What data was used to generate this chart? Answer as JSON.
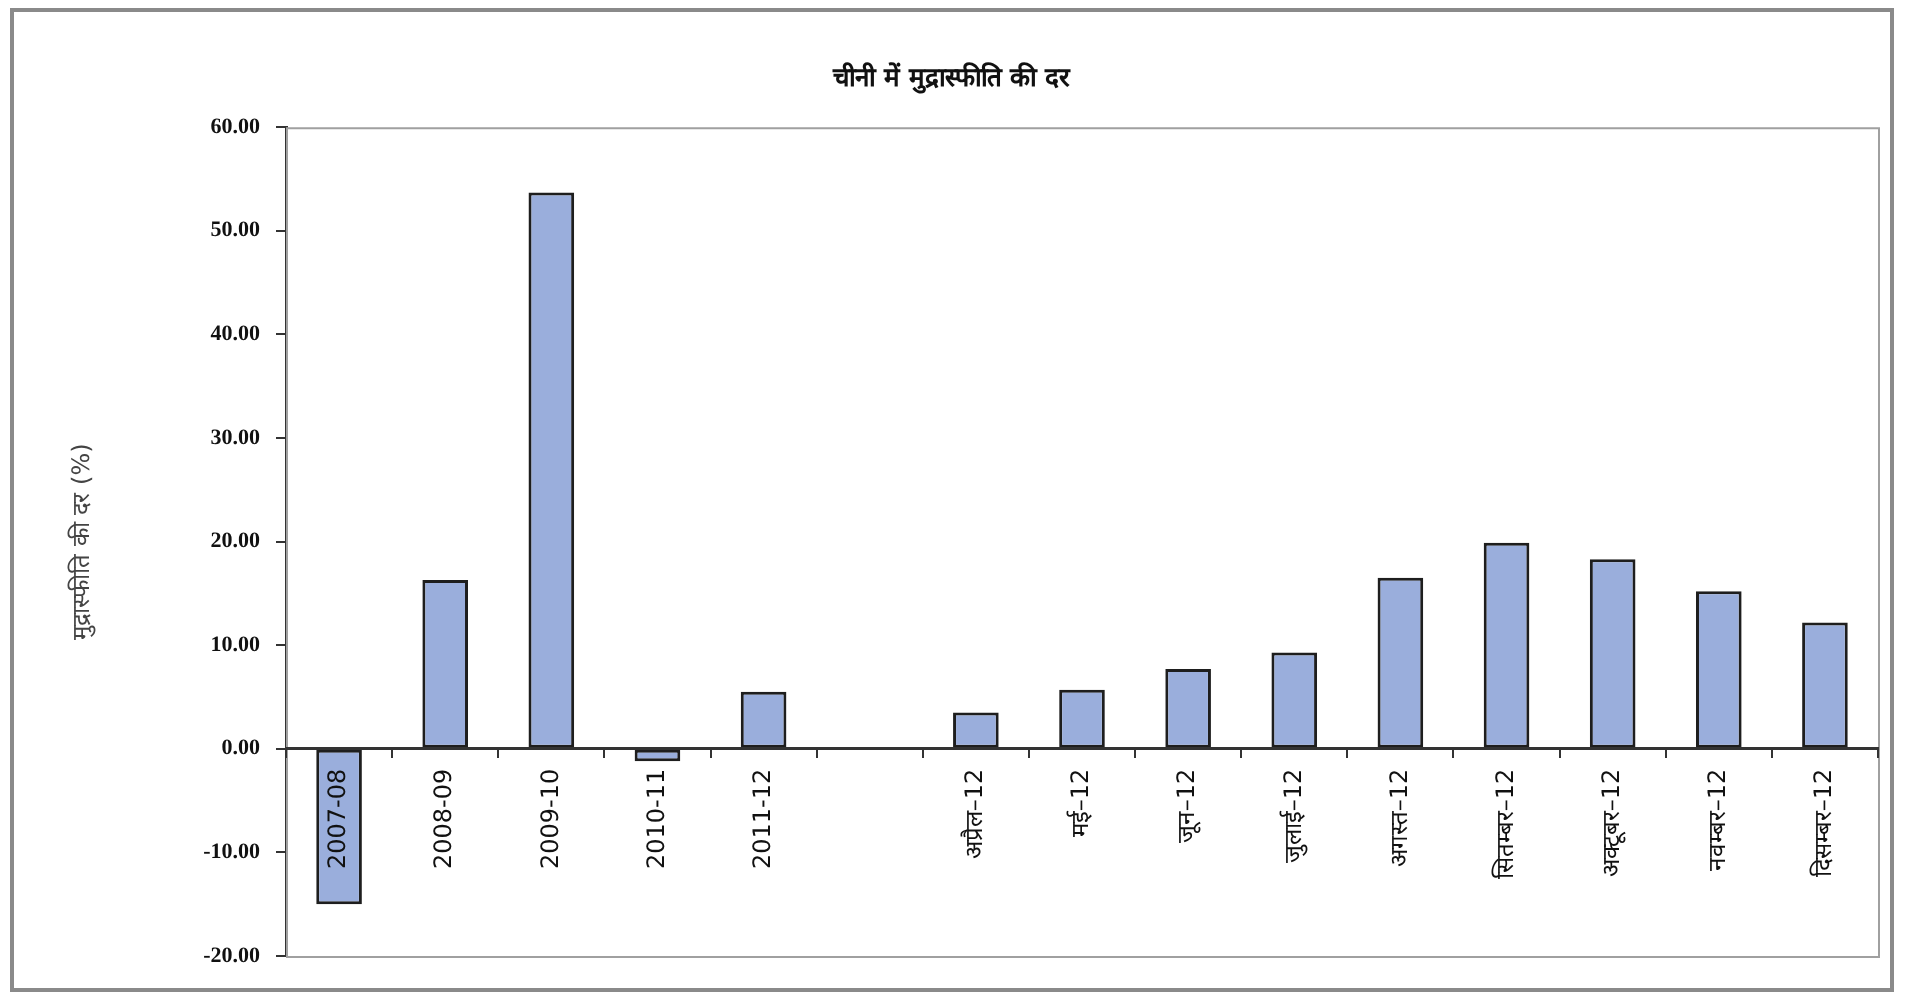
{
  "chart_data": {
    "type": "bar",
    "title": "चीनी में मुद्रास्फीति की दर",
    "ylabel": "मुद्रास्फीति की दर (%)",
    "categories": [
      "2007-08",
      "2008-09",
      "2009-10",
      "2010-11",
      "2011-12",
      null,
      "अप्रैल–12",
      "मई–12",
      "जून–12",
      "जुलाई–12",
      "अगस्त–12",
      "सितम्बर–12",
      "अक्टूबर–12",
      "नवम्बर–12",
      "दिसम्बर–12"
    ],
    "values": [
      -15.0,
      16.3,
      53.7,
      -1.2,
      5.5,
      null,
      3.5,
      5.7,
      7.7,
      9.3,
      16.5,
      19.9,
      18.3,
      15.2,
      12.2
    ],
    "color": "#9aaedc",
    "ylim": [
      -20,
      60
    ],
    "yticks": [
      {
        "value": -20,
        "label": "-20.00"
      },
      {
        "value": -10,
        "label": "-10.00"
      },
      {
        "value": 0,
        "label": "0.00"
      },
      {
        "value": 10,
        "label": "10.00"
      },
      {
        "value": 20,
        "label": "20.00"
      },
      {
        "value": 30,
        "label": "30.00"
      },
      {
        "value": 40,
        "label": "40.00"
      },
      {
        "value": 50,
        "label": "50.00"
      },
      {
        "value": 60,
        "label": "60.00"
      }
    ],
    "grid": false,
    "legend": false
  }
}
